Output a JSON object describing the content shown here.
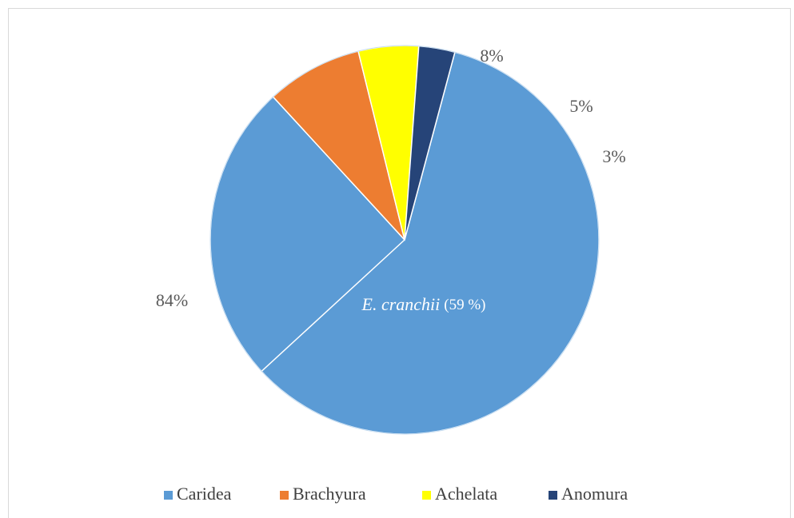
{
  "chart_data": {
    "type": "pie",
    "categories": [
      "Caridea",
      "Brachyura",
      "Achelata",
      "Anomura"
    ],
    "values": [
      84,
      8,
      5,
      3
    ],
    "value_labels": [
      "84%",
      "8%",
      "5%",
      "3%"
    ],
    "colors": [
      "#5b9bd5",
      "#ed7d31",
      "#ffff00",
      "#264478"
    ],
    "annotation": {
      "species": "E. cranchii",
      "label": "(59 %)",
      "value": 59
    },
    "legend": "bottom"
  }
}
